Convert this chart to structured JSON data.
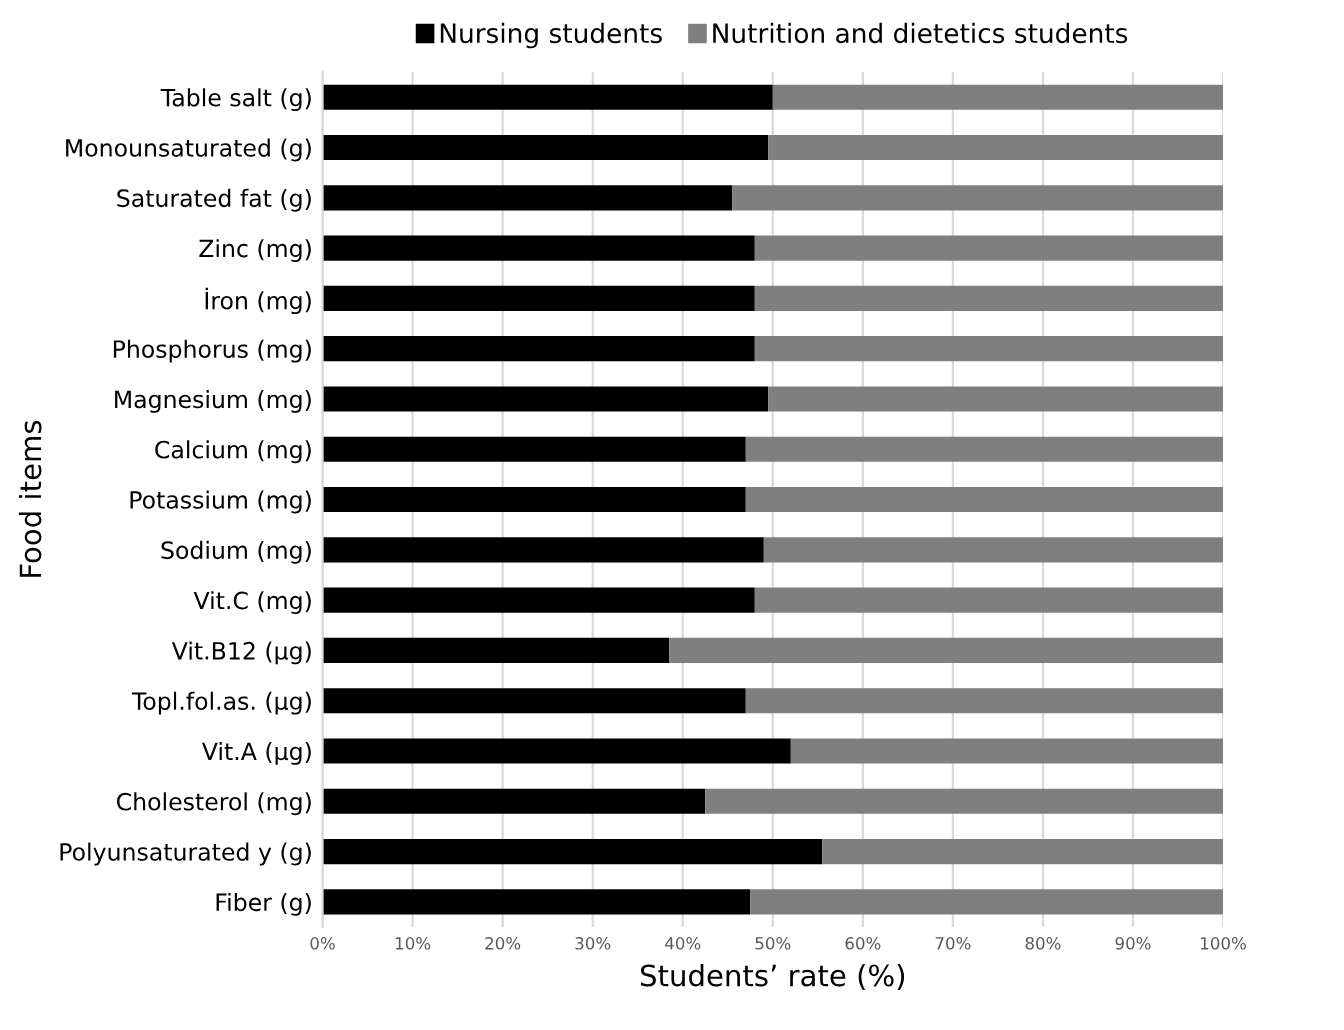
{
  "chart_data": {
    "type": "bar",
    "orientation": "horizontal",
    "stacked": true,
    "xlabel": "Students’ rate (%)",
    "ylabel": "Food items",
    "categories": [
      "Table salt (g)",
      "Monounsaturated (g)",
      "Saturated fat (g)",
      "Zinc (mg)",
      "İron (mg)",
      "Phosphorus (mg)",
      "Magnesium (mg)",
      "Calcium (mg)",
      "Potassium (mg)",
      "Sodium (mg)",
      "Vit.C (mg)",
      "Vit.B12 (µg)",
      "Topl.fol.as. (µg)",
      "Vit.A (µg)",
      "Cholesterol (mg)",
      "Polyunsaturated y (g)",
      "Fiber (g)"
    ],
    "series": [
      {
        "name": "Nursing students",
        "color": "#000000",
        "values": [
          50,
          49.5,
          45.5,
          48,
          48,
          48,
          49.5,
          47,
          47,
          49,
          48,
          38.5,
          47,
          52,
          42.5,
          55.5,
          47.5
        ]
      },
      {
        "name": "Nutrition and dietetics students",
        "color": "#7f7f7f",
        "values": [
          50,
          50.5,
          54.5,
          52,
          52,
          52,
          50.5,
          53,
          53,
          51,
          52,
          61.5,
          53,
          48,
          57.5,
          44.5,
          52.5
        ]
      }
    ],
    "xlim": [
      0,
      100
    ],
    "xticks": [
      {
        "value": 0,
        "label": "0%"
      },
      {
        "value": 10,
        "label": "10%"
      },
      {
        "value": 20,
        "label": "20%"
      },
      {
        "value": 30,
        "label": "30%"
      },
      {
        "value": 40,
        "label": "40%"
      },
      {
        "value": 50,
        "label": "50%"
      },
      {
        "value": 60,
        "label": "60%"
      },
      {
        "value": 70,
        "label": "70%"
      },
      {
        "value": 80,
        "label": "80%"
      },
      {
        "value": 90,
        "label": "90%"
      },
      {
        "value": 100,
        "label": "100%"
      }
    ],
    "grid": "x",
    "legend": "top"
  }
}
